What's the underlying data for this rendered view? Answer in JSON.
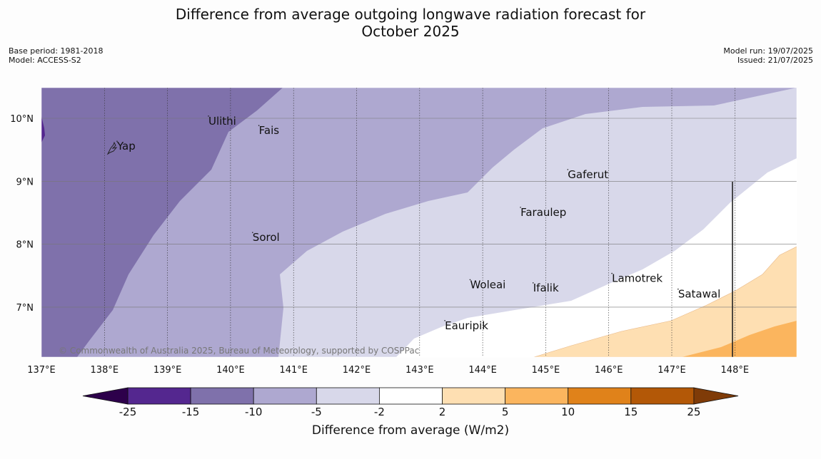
{
  "header": {
    "title_line1": "Difference from average outgoing longwave radiation forecast for",
    "title_line2": "October 2025",
    "base_period": "Base period: 1981-2018",
    "model": "Model: ACCESS-S2",
    "model_run": "Model run: 19/07/2025",
    "issued": "Issued: 21/07/2025"
  },
  "map": {
    "lon_ticks": [
      "137°E",
      "138°E",
      "139°E",
      "140°E",
      "141°E",
      "142°E",
      "143°E",
      "144°E",
      "145°E",
      "146°E",
      "147°E",
      "148°E"
    ],
    "lat_ticks": [
      "10°N",
      "9°N",
      "8°N",
      "7°N"
    ],
    "places": [
      {
        "name": "Yap",
        "lon": 138.2,
        "lat": 9.5
      },
      {
        "name": "Ulithi",
        "lon": 139.65,
        "lat": 9.9
      },
      {
        "name": "Fais",
        "lon": 140.45,
        "lat": 9.75
      },
      {
        "name": "Gaferut",
        "lon": 145.35,
        "lat": 9.05
      },
      {
        "name": "Faraulep",
        "lon": 144.6,
        "lat": 8.45
      },
      {
        "name": "Sorol",
        "lon": 140.35,
        "lat": 8.05
      },
      {
        "name": "Woleai",
        "lon": 143.8,
        "lat": 7.3
      },
      {
        "name": "Ifalik",
        "lon": 144.8,
        "lat": 7.25
      },
      {
        "name": "Lamotrek",
        "lon": 146.05,
        "lat": 7.4
      },
      {
        "name": "Satawal",
        "lon": 147.1,
        "lat": 7.15
      },
      {
        "name": "Eauripik",
        "lon": 143.4,
        "lat": 6.65
      }
    ],
    "copyright": "© Commonwealth of Australia 2025, Bureau of Meteorology, supported by COSPPac"
  },
  "colorbar": {
    "ticks": [
      "-25",
      "-15",
      "-10",
      "-5",
      "-2",
      "2",
      "5",
      "10",
      "15",
      "25"
    ],
    "colors": [
      "#54278f",
      "#7f71ab",
      "#aea8d0",
      "#d8d8ea",
      "#ffffff",
      "#fedfb2",
      "#fbb55e",
      "#e0821a",
      "#b35807"
    ],
    "under_color": "#2d004b",
    "over_color": "#7f3b08",
    "label": "Difference from average (W/m2)"
  }
}
